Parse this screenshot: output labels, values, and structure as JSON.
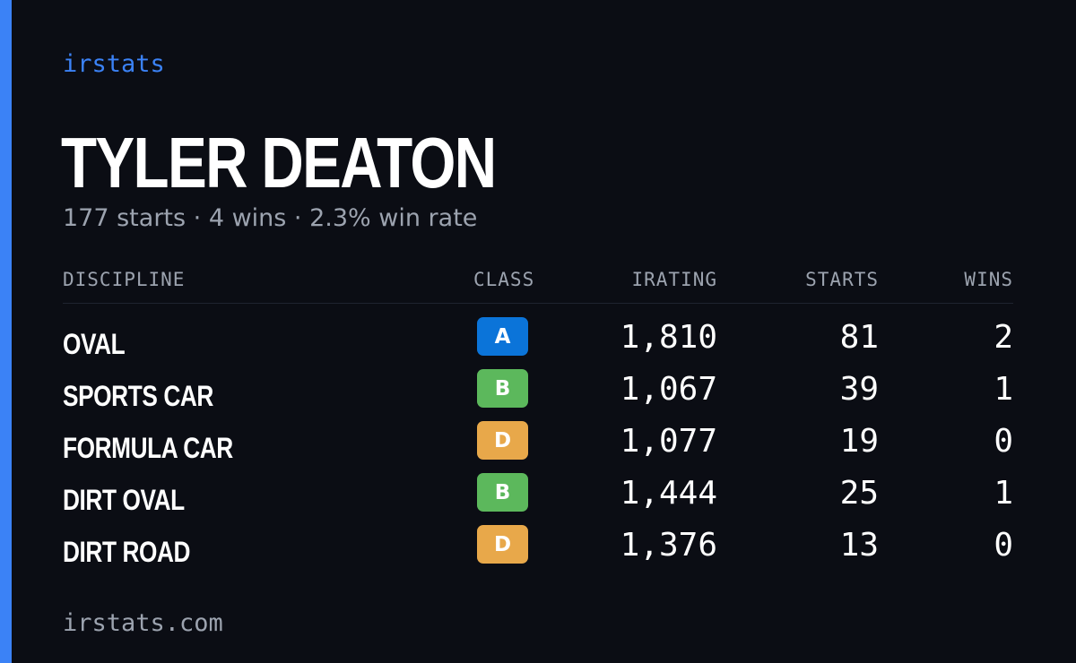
{
  "brand": "irstats",
  "driver_name": "TYLER DEATON",
  "summary": "177 starts · 4 wins · 2.3% win rate",
  "columns": {
    "discipline": "DISCIPLINE",
    "class": "CLASS",
    "irating": "IRATING",
    "starts": "STARTS",
    "wins": "WINS"
  },
  "rows": [
    {
      "discipline": "OVAL",
      "class": "A",
      "class_color": "#0b74d9",
      "irating": "1,810",
      "starts": "81",
      "wins": "2"
    },
    {
      "discipline": "SPORTS CAR",
      "class": "B",
      "class_color": "#5cb85c",
      "irating": "1,067",
      "starts": "39",
      "wins": "1"
    },
    {
      "discipline": "FORMULA CAR",
      "class": "D",
      "class_color": "#e8a84a",
      "irating": "1,077",
      "starts": "19",
      "wins": "0"
    },
    {
      "discipline": "DIRT OVAL",
      "class": "B",
      "class_color": "#5cb85c",
      "irating": "1,444",
      "starts": "25",
      "wins": "1"
    },
    {
      "discipline": "DIRT ROAD",
      "class": "D",
      "class_color": "#e8a84a",
      "irating": "1,376",
      "starts": "13",
      "wins": "0"
    }
  ],
  "footer": "irstats.com",
  "colors": {
    "accent": "#3b82f6",
    "background": "#0b0d14",
    "muted_text": "#9ca3af"
  }
}
